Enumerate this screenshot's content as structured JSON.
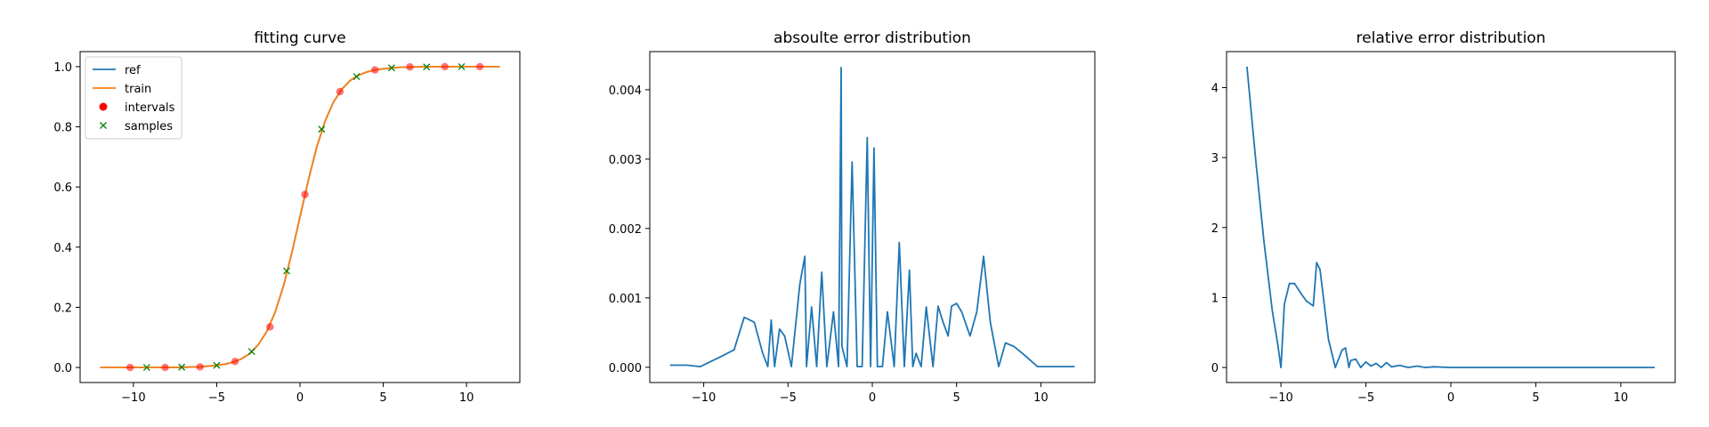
{
  "chart_data": [
    {
      "type": "line",
      "title": "fitting curve",
      "xlabel": "",
      "ylabel": "",
      "xlim": [
        -13.2,
        13.2
      ],
      "ylim": [
        -0.05,
        1.05
      ],
      "xticks": [
        -10,
        -5,
        0,
        5,
        10
      ],
      "xtick_labels": [
        "−10",
        "−5",
        "0",
        "5",
        "10"
      ],
      "yticks": [
        0.0,
        0.2,
        0.4,
        0.6,
        0.8,
        1.0
      ],
      "ytick_labels": [
        "0.0",
        "0.2",
        "0.4",
        "0.6",
        "0.8",
        "1.0"
      ],
      "legend_position": "upper-left",
      "series": [
        {
          "name": "ref",
          "kind": "line",
          "color": "#1f77b4",
          "x": [
            -12,
            -11,
            -10,
            -9,
            -8,
            -7,
            -6,
            -5,
            -4.5,
            -4,
            -3.5,
            -3,
            -2.5,
            -2,
            -1.5,
            -1,
            -0.5,
            0,
            0.5,
            1,
            1.5,
            2,
            2.5,
            3,
            3.5,
            4,
            4.5,
            5,
            6,
            7,
            8,
            9,
            10,
            11,
            12
          ],
          "y": [
            0.0,
            0.0,
            0.0,
            0.0,
            0.0,
            0.001,
            0.002,
            0.007,
            0.011,
            0.018,
            0.029,
            0.047,
            0.076,
            0.119,
            0.182,
            0.269,
            0.378,
            0.5,
            0.622,
            0.731,
            0.818,
            0.881,
            0.924,
            0.953,
            0.971,
            0.982,
            0.989,
            0.993,
            0.998,
            0.999,
            1.0,
            1.0,
            1.0,
            1.0,
            1.0
          ]
        },
        {
          "name": "train",
          "kind": "line",
          "color": "#ff7f0e",
          "x": [
            -12,
            -11,
            -10,
            -9,
            -8,
            -7,
            -6,
            -5,
            -4.5,
            -4,
            -3.5,
            -3,
            -2.5,
            -2,
            -1.5,
            -1,
            -0.5,
            0,
            0.5,
            1,
            1.5,
            2,
            2.5,
            3,
            3.5,
            4,
            4.5,
            5,
            6,
            7,
            8,
            9,
            10,
            11,
            12
          ],
          "y": [
            0.0,
            0.0,
            0.0,
            0.0,
            0.0,
            0.001,
            0.002,
            0.007,
            0.011,
            0.018,
            0.029,
            0.047,
            0.076,
            0.119,
            0.182,
            0.269,
            0.378,
            0.5,
            0.622,
            0.731,
            0.818,
            0.881,
            0.924,
            0.953,
            0.971,
            0.982,
            0.989,
            0.993,
            0.998,
            0.999,
            1.0,
            1.0,
            1.0,
            1.0,
            1.0
          ]
        },
        {
          "name": "intervals",
          "kind": "points",
          "marker": "o",
          "color": "#ff0000",
          "x": [
            -10.2,
            -8.1,
            -6.0,
            -3.9,
            -1.8,
            0.3,
            2.4,
            4.5,
            6.6,
            8.7,
            10.8
          ],
          "y": [
            0.0,
            0.0,
            0.002,
            0.02,
            0.135,
            0.575,
            0.917,
            0.989,
            0.999,
            1.0,
            1.0
          ]
        },
        {
          "name": "samples",
          "kind": "points",
          "marker": "x",
          "color": "#008000",
          "x": [
            -9.2,
            -7.1,
            -5.0,
            -2.9,
            -0.8,
            1.3,
            3.4,
            5.5,
            7.6,
            9.7
          ],
          "y": [
            0.0,
            0.001,
            0.007,
            0.053,
            0.321,
            0.792,
            0.967,
            0.996,
            0.999,
            1.0
          ]
        }
      ]
    },
    {
      "type": "line",
      "title": "absoulte error distribution",
      "xlabel": "",
      "ylabel": "",
      "xlim": [
        -13.2,
        13.2
      ],
      "ylim": [
        -0.00022,
        0.00455
      ],
      "xticks": [
        -10,
        -5,
        0,
        5,
        10
      ],
      "xtick_labels": [
        "−10",
        "−5",
        "0",
        "5",
        "10"
      ],
      "yticks": [
        0.0,
        0.001,
        0.002,
        0.003,
        0.004
      ],
      "ytick_labels": [
        "0.000",
        "0.001",
        "0.002",
        "0.003",
        "0.004"
      ],
      "series": [
        {
          "name": "",
          "kind": "line",
          "color": "#1f77b4",
          "x": [
            -12,
            -11,
            -10.2,
            -9,
            -8.2,
            -7.6,
            -7,
            -6.5,
            -6.2,
            -6.0,
            -5.8,
            -5.5,
            -5.2,
            -4.8,
            -4.3,
            -4.0,
            -3.9,
            -3.6,
            -3.3,
            -3.0,
            -2.7,
            -2.3,
            -2.0,
            -1.85,
            -1.8,
            -1.5,
            -1.2,
            -0.9,
            -0.6,
            -0.3,
            -0.1,
            0.1,
            0.3,
            0.6,
            0.9,
            1.3,
            1.6,
            1.9,
            2.2,
            2.4,
            2.6,
            2.9,
            3.2,
            3.6,
            3.9,
            4.2,
            4.5,
            4.7,
            5.0,
            5.3,
            5.8,
            6.2,
            6.6,
            7.0,
            7.5,
            7.9,
            8.4,
            9.0,
            9.8,
            10.8,
            12
          ],
          "y": [
            3e-05,
            3e-05,
            1e-05,
            0.00015,
            0.00025,
            0.00072,
            0.00065,
            0.0002,
            1e-05,
            0.00068,
            1e-05,
            0.00055,
            0.00045,
            1e-05,
            0.0012,
            0.0016,
            1e-05,
            0.00087,
            1e-05,
            0.00137,
            1e-05,
            0.0008,
            1e-05,
            0.00432,
            0.0003,
            1e-05,
            0.00296,
            1e-05,
            1e-05,
            0.00331,
            1e-05,
            0.00316,
            1e-05,
            1e-05,
            0.0008,
            1e-05,
            0.0018,
            1e-05,
            0.0014,
            1e-05,
            0.0002,
            1e-05,
            0.00087,
            1e-05,
            0.00088,
            0.00065,
            0.00045,
            0.00088,
            0.00092,
            0.0008,
            0.00045,
            0.0008,
            0.0016,
            0.00065,
            1e-05,
            0.00035,
            0.0003,
            0.00018,
            1e-05,
            1e-05,
            1e-05
          ]
        }
      ]
    },
    {
      "type": "line",
      "title": "relative error distribution",
      "xlabel": "",
      "ylabel": "",
      "xlim": [
        -13.2,
        13.2
      ],
      "ylim": [
        -0.215,
        4.515
      ],
      "xticks": [
        -10,
        -5,
        0,
        5,
        10
      ],
      "xtick_labels": [
        "−10",
        "−5",
        "0",
        "5",
        "10"
      ],
      "yticks": [
        0,
        1,
        2,
        3,
        4
      ],
      "ytick_labels": [
        "0",
        "1",
        "2",
        "3",
        "4"
      ],
      "series": [
        {
          "name": "",
          "kind": "line",
          "color": "#1f77b4",
          "x": [
            -12,
            -11.5,
            -11,
            -10.5,
            -10.2,
            -10.0,
            -9.8,
            -9.5,
            -9.2,
            -8.8,
            -8.5,
            -8.1,
            -7.9,
            -7.7,
            -7.5,
            -7.2,
            -6.8,
            -6.4,
            -6.2,
            -6.0,
            -5.9,
            -5.6,
            -5.3,
            -5.0,
            -4.7,
            -4.4,
            -4.1,
            -3.8,
            -3.5,
            -3.0,
            -2.5,
            -2.0,
            -1.5,
            -1.0,
            0,
            2,
            4,
            6,
            8,
            10,
            12
          ],
          "y": [
            4.3,
            3.0,
            1.8,
            0.8,
            0.35,
            0.0,
            0.9,
            1.2,
            1.2,
            1.05,
            0.95,
            0.88,
            1.5,
            1.4,
            1.0,
            0.4,
            0.0,
            0.25,
            0.28,
            0.0,
            0.1,
            0.12,
            0.0,
            0.08,
            0.02,
            0.06,
            0.0,
            0.07,
            0.01,
            0.03,
            0.0,
            0.02,
            0.0,
            0.01,
            0.0,
            0.0,
            0.0,
            0.0,
            0.0,
            0.0,
            0.0
          ]
        }
      ]
    }
  ]
}
